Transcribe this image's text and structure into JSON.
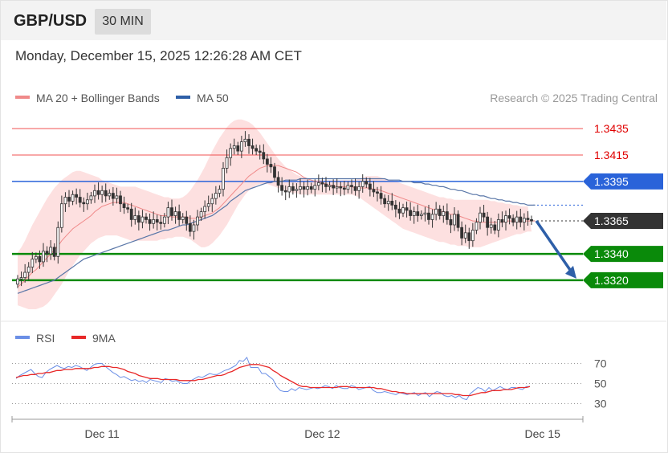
{
  "header": {
    "symbol": "GBP/USD",
    "interval": "30 MIN",
    "datetime": "Monday, December 15, 2025 12:26:28 AM CET",
    "copyright": "Research © 2025 Trading Central"
  },
  "legend": {
    "ma20": "MA 20 + Bollinger Bands",
    "ma50": "MA 50",
    "rsi": "RSI",
    "rsi9ma": "9MA"
  },
  "colors": {
    "candle": "#333333",
    "ma20": "#f08a8a",
    "bollinger_fill": "#fde0e0",
    "ma50": "#5a77a8",
    "resistance": "#f05050",
    "resistance_text": "#e00000",
    "ma_level": "#2a63d9",
    "support": "#0a8a0a",
    "current": "#333333",
    "arrow": "#2e5fa8",
    "rsi": "#6b8fe6",
    "rsi_ma": "#e82828"
  },
  "chart_data": [
    {
      "type": "candlestick",
      "ylim": [
        1.3298,
        1.3454
      ],
      "x_ticks": [
        "Dec 11",
        "Dec 12",
        "Dec 15"
      ],
      "x_tick_index": [
        23,
        83,
        143
      ],
      "levels": [
        {
          "label": "1.3435",
          "value": 1.3435,
          "kind": "resistance"
        },
        {
          "label": "1.3415",
          "value": 1.3415,
          "kind": "resistance"
        },
        {
          "label": "1.3395",
          "value": 1.3395,
          "kind": "ma_level"
        },
        {
          "label": "1.3365",
          "value": 1.3365,
          "kind": "current"
        },
        {
          "label": "1.3340",
          "value": 1.334,
          "kind": "support"
        },
        {
          "label": "1.3320",
          "value": 1.332,
          "kind": "support"
        }
      ],
      "forecast": {
        "from": 1.3365,
        "to": 1.332
      },
      "close": [
        1.3321,
        1.3322,
        1.3326,
        1.333,
        1.3336,
        1.3338,
        1.3334,
        1.3342,
        1.334,
        1.3345,
        1.3338,
        1.336,
        1.3378,
        1.3383,
        1.338,
        1.3385,
        1.3383,
        1.3379,
        1.3378,
        1.3381,
        1.3384,
        1.3388,
        1.3385,
        1.3388,
        1.3384,
        1.3386,
        1.3382,
        1.3384,
        1.3378,
        1.3375,
        1.3374,
        1.3366,
        1.3369,
        1.3364,
        1.3368,
        1.3366,
        1.3363,
        1.3366,
        1.3364,
        1.3363,
        1.3368,
        1.3375,
        1.3369,
        1.3372,
        1.3366,
        1.3368,
        1.3363,
        1.3357,
        1.3362,
        1.3368,
        1.3372,
        1.3376,
        1.3378,
        1.3382,
        1.3386,
        1.3389,
        1.3405,
        1.3413,
        1.342,
        1.3422,
        1.3418,
        1.3425,
        1.3427,
        1.3422,
        1.342,
        1.3418,
        1.3417,
        1.3412,
        1.3408,
        1.3406,
        1.3398,
        1.3392,
        1.3388,
        1.3387,
        1.3391,
        1.3388,
        1.3389,
        1.3391,
        1.3389,
        1.3391,
        1.3389,
        1.3392,
        1.3394,
        1.3393,
        1.3391,
        1.3392,
        1.339,
        1.3391,
        1.339,
        1.3389,
        1.3392,
        1.3391,
        1.3388,
        1.3391,
        1.3395,
        1.3393,
        1.3389,
        1.3387,
        1.3386,
        1.3382,
        1.3378,
        1.338,
        1.3377,
        1.3374,
        1.3371,
        1.3375,
        1.3373,
        1.3369,
        1.3372,
        1.3369,
        1.337,
        1.3371,
        1.3366,
        1.337,
        1.3374,
        1.3369,
        1.3372,
        1.3366,
        1.3362,
        1.337,
        1.336,
        1.3352,
        1.3356,
        1.335,
        1.3358,
        1.3364,
        1.3371,
        1.3368,
        1.336,
        1.3362,
        1.3358,
        1.3366,
        1.3364,
        1.3369,
        1.3367,
        1.3364,
        1.3368,
        1.3364,
        1.3367,
        1.3366,
        1.3365
      ],
      "ma20": [
        1.3315,
        1.3317,
        1.332,
        1.3323,
        1.3326,
        1.3328,
        1.3331,
        1.3334,
        1.3337,
        1.334,
        1.3343,
        1.3346,
        1.335,
        1.3353,
        1.3356,
        1.3359,
        1.3361,
        1.3363,
        1.3365,
        1.3367,
        1.3369,
        1.3372,
        1.3374,
        1.3376,
        1.3377,
        1.3378,
        1.3379,
        1.3379,
        1.3379,
        1.3379,
        1.3378,
        1.3377,
        1.3376,
        1.3375,
        1.3374,
        1.3373,
        1.3372,
        1.3371,
        1.337,
        1.3369,
        1.3369,
        1.3369,
        1.3368,
        1.3368,
        1.3368,
        1.3368,
        1.3368,
        1.3367,
        1.3367,
        1.3367,
        1.3368,
        1.3369,
        1.337,
        1.3371,
        1.3373,
        1.3375,
        1.3378,
        1.3381,
        1.3384,
        1.3387,
        1.339,
        1.3393,
        1.3396,
        1.3399,
        1.3401,
        1.3403,
        1.3405,
        1.3406,
        1.3407,
        1.3407,
        1.3407,
        1.3407,
        1.3406,
        1.3405,
        1.3404,
        1.3403,
        1.3402,
        1.34,
        1.3398,
        1.3397,
        1.3396,
        1.3395,
        1.3395,
        1.3394,
        1.3393,
        1.3392,
        1.3392,
        1.3391,
        1.3391,
        1.3391,
        1.3391,
        1.3391,
        1.339,
        1.339,
        1.339,
        1.339,
        1.339,
        1.3389,
        1.3389,
        1.3388,
        1.3387,
        1.3386,
        1.3385,
        1.3384,
        1.3383,
        1.3382,
        1.3381,
        1.338,
        1.3379,
        1.3378,
        1.3377,
        1.3376,
        1.3375,
        1.3374,
        1.3373,
        1.3372,
        1.3372,
        1.3371,
        1.337,
        1.337,
        1.3369,
        1.3368,
        1.3367,
        1.3366,
        1.3365,
        1.3365,
        1.3364,
        1.3364,
        1.3364,
        1.3364,
        1.3364,
        1.3364,
        1.3364,
        1.3365,
        1.3365,
        1.3365,
        1.3365,
        1.3365,
        1.3365,
        1.3365,
        1.3365,
        1.3365
      ],
      "bb_upper": [
        1.3341,
        1.3345,
        1.335,
        1.3356,
        1.3362,
        1.3367,
        1.3372,
        1.3377,
        1.3382,
        1.3386,
        1.339,
        1.3393,
        1.3396,
        1.3398,
        1.34,
        1.3402,
        1.3403,
        1.3403,
        1.3402,
        1.3401,
        1.34,
        1.3399,
        1.3398,
        1.3396,
        1.3395,
        1.3394,
        1.3393,
        1.3392,
        1.3391,
        1.3391,
        1.3391,
        1.3391,
        1.3391,
        1.339,
        1.3389,
        1.3388,
        1.3387,
        1.3386,
        1.3385,
        1.3384,
        1.3383,
        1.3383,
        1.3382,
        1.3382,
        1.3382,
        1.3383,
        1.3385,
        1.3388,
        1.3392,
        1.3396,
        1.3401,
        1.3406,
        1.3412,
        1.3418,
        1.3423,
        1.3428,
        1.3432,
        1.3436,
        1.3439,
        1.3441,
        1.3442,
        1.3442,
        1.3441,
        1.344,
        1.3438,
        1.3435,
        1.3432,
        1.3428,
        1.3424,
        1.342,
        1.3416,
        1.3412,
        1.3409,
        1.3406,
        1.3404,
        1.3402,
        1.34,
        1.3399,
        1.3398,
        1.3397,
        1.3396,
        1.3396,
        1.3396,
        1.3396,
        1.3396,
        1.3396,
        1.3396,
        1.3396,
        1.3396,
        1.3396,
        1.3396,
        1.3396,
        1.3396,
        1.3397,
        1.3398,
        1.3399,
        1.3399,
        1.3399,
        1.3399,
        1.3398,
        1.3397,
        1.3396,
        1.3396,
        1.3395,
        1.3394,
        1.3393,
        1.3392,
        1.3391,
        1.339,
        1.3389,
        1.3388,
        1.3387,
        1.3386,
        1.3385,
        1.3384,
        1.3383,
        1.3383,
        1.3382,
        1.3382,
        1.3381,
        1.3381,
        1.3381,
        1.3381,
        1.3381,
        1.3381,
        1.3381,
        1.3381,
        1.3381,
        1.3381,
        1.338,
        1.338,
        1.3379,
        1.3379,
        1.3378,
        1.3378,
        1.3377,
        1.3377,
        1.3376,
        1.3376,
        1.3376
      ],
      "bb_lower": [
        1.3301,
        1.33,
        1.3299,
        1.3298,
        1.3298,
        1.3298,
        1.3299,
        1.33,
        1.3302,
        1.3305,
        1.3309,
        1.3313,
        1.3317,
        1.3322,
        1.3327,
        1.3331,
        1.3335,
        1.3339,
        1.3342,
        1.3345,
        1.3348,
        1.335,
        1.3352,
        1.3353,
        1.3354,
        1.3354,
        1.3354,
        1.3354,
        1.3353,
        1.3352,
        1.3351,
        1.335,
        1.335,
        1.335,
        1.335,
        1.335,
        1.335,
        1.335,
        1.335,
        1.3351,
        1.3351,
        1.3352,
        1.3352,
        1.3353,
        1.3353,
        1.3353,
        1.3352,
        1.3351,
        1.3349,
        1.3347,
        1.3345,
        1.3345,
        1.3346,
        1.3348,
        1.3351,
        1.3354,
        1.3358,
        1.3362,
        1.3367,
        1.3372,
        1.3377,
        1.3381,
        1.3385,
        1.3388,
        1.339,
        1.3392,
        1.3393,
        1.3393,
        1.3393,
        1.3392,
        1.3391,
        1.339,
        1.3389,
        1.3388,
        1.3387,
        1.3386,
        1.3386,
        1.3385,
        1.3385,
        1.3385,
        1.3385,
        1.3385,
        1.3385,
        1.3385,
        1.3385,
        1.3385,
        1.3385,
        1.3385,
        1.3385,
        1.3385,
        1.3385,
        1.3385,
        1.3384,
        1.3383,
        1.3381,
        1.3379,
        1.3377,
        1.3375,
        1.3373,
        1.3371,
        1.3369,
        1.3367,
        1.3365,
        1.3363,
        1.3361,
        1.3359,
        1.3358,
        1.3357,
        1.3356,
        1.3355,
        1.3354,
        1.3353,
        1.3352,
        1.3351,
        1.335,
        1.3349,
        1.3349,
        1.3348,
        1.3347,
        1.3347,
        1.3346,
        1.3346,
        1.3346,
        1.3345,
        1.3345,
        1.3345,
        1.3345,
        1.3346,
        1.3347,
        1.3348,
        1.3349,
        1.335,
        1.3351,
        1.3352,
        1.3353,
        1.3354,
        1.3355,
        1.3355,
        1.3356,
        1.3357,
        1.3357,
        1.3358,
        1.3358,
        1.3358
      ],
      "ma50": [
        1.331,
        1.3311,
        1.3312,
        1.3313,
        1.3314,
        1.3315,
        1.3316,
        1.3317,
        1.3318,
        1.3319,
        1.332,
        1.3322,
        1.3324,
        1.3326,
        1.3328,
        1.333,
        1.3332,
        1.3334,
        1.3336,
        1.3337,
        1.3338,
        1.3339,
        1.334,
        1.3341,
        1.3342,
        1.3343,
        1.3344,
        1.3345,
        1.3346,
        1.3347,
        1.3348,
        1.3349,
        1.335,
        1.3351,
        1.3352,
        1.3353,
        1.3354,
        1.3355,
        1.3356,
        1.3357,
        1.3358,
        1.3358,
        1.3359,
        1.336,
        1.3361,
        1.3362,
        1.3362,
        1.3363,
        1.3364,
        1.3365,
        1.3366,
        1.3367,
        1.3368,
        1.3369,
        1.3371,
        1.3373,
        1.3375,
        1.3377,
        1.338,
        1.3382,
        1.3384,
        1.3386,
        1.3388,
        1.3389,
        1.339,
        1.3391,
        1.3392,
        1.3393,
        1.3394,
        1.3394,
        1.3395,
        1.3395,
        1.3395,
        1.3396,
        1.3396,
        1.3396,
        1.3396,
        1.3397,
        1.3397,
        1.3397,
        1.3397,
        1.3397,
        1.3397,
        1.3397,
        1.3397,
        1.3397,
        1.3397,
        1.3397,
        1.3397,
        1.3397,
        1.3397,
        1.3397,
        1.3397,
        1.3397,
        1.3397,
        1.3397,
        1.3397,
        1.3397,
        1.3397,
        1.3397,
        1.3397,
        1.3396,
        1.3396,
        1.3396,
        1.3396,
        1.3395,
        1.3395,
        1.3395,
        1.3394,
        1.3394,
        1.3394,
        1.3393,
        1.3393,
        1.3392,
        1.3392,
        1.3391,
        1.3391,
        1.339,
        1.3389,
        1.3389,
        1.3388,
        1.3388,
        1.3387,
        1.3386,
        1.3385,
        1.3385,
        1.3384,
        1.3384,
        1.3383,
        1.3382,
        1.3382,
        1.3381,
        1.3381,
        1.338,
        1.338,
        1.3379,
        1.3379,
        1.3378,
        1.3378,
        1.3377,
        1.3377,
        1.3377
      ]
    },
    {
      "type": "line",
      "ylim": [
        20,
        80
      ],
      "y_ticks": [
        "70",
        "50",
        "30"
      ],
      "y_tick_values": [
        70,
        50,
        30
      ],
      "series": [
        {
          "name": "RSI",
          "values": [
            55,
            58,
            60,
            62,
            64,
            60,
            57,
            56,
            61,
            64,
            66,
            68,
            66,
            65,
            67,
            66,
            68,
            67,
            65,
            63,
            66,
            69,
            70,
            70,
            67,
            64,
            61,
            59,
            56,
            57,
            55,
            53,
            54,
            52,
            53,
            51,
            54,
            53,
            52,
            51,
            55,
            54,
            52,
            53,
            51,
            50,
            50,
            53,
            55,
            57,
            56,
            58,
            60,
            59,
            59,
            61,
            63,
            64,
            66,
            68,
            73,
            72,
            76,
            66,
            66,
            66,
            60,
            60,
            57,
            54,
            47,
            43,
            42,
            42,
            45,
            43,
            46,
            45,
            44,
            45,
            46,
            45,
            46,
            48,
            47,
            45,
            48,
            46,
            45,
            45,
            48,
            47,
            44,
            45,
            46,
            47,
            43,
            41,
            41,
            42,
            41,
            40,
            39,
            41,
            40,
            39,
            40,
            41,
            38,
            40,
            41,
            37,
            40,
            42,
            41,
            38,
            37,
            38,
            36,
            38,
            35,
            34,
            40,
            43,
            46,
            45,
            42,
            46,
            43,
            45,
            47,
            45,
            44,
            46,
            46,
            45,
            44,
            47,
            47
          ]
        },
        {
          "name": "9MA",
          "values": [
            56,
            57,
            58,
            58,
            59,
            59,
            60,
            60,
            61,
            61,
            62,
            63,
            63,
            64,
            64,
            64,
            65,
            65,
            65,
            65,
            65,
            66,
            66,
            67,
            67,
            67,
            66,
            66,
            65,
            64,
            62,
            61,
            60,
            58,
            57,
            56,
            55,
            55,
            55,
            54,
            54,
            54,
            54,
            54,
            53,
            53,
            53,
            53,
            53,
            54,
            54,
            55,
            56,
            57,
            58,
            58,
            59,
            61,
            62,
            64,
            66,
            67,
            68,
            69,
            69,
            69,
            68,
            67,
            66,
            63,
            61,
            58,
            56,
            54,
            52,
            50,
            48,
            47,
            47,
            46,
            46,
            46,
            46,
            46,
            46,
            46,
            46,
            47,
            47,
            47,
            46,
            46,
            46,
            46,
            46,
            46,
            46,
            45,
            45,
            44,
            43,
            42,
            42,
            41,
            41,
            40,
            40,
            40,
            40,
            40,
            40,
            40,
            40,
            40,
            40,
            40,
            40,
            40,
            39,
            39,
            38,
            38,
            38,
            39,
            40,
            41,
            41,
            42,
            43,
            43,
            43,
            44,
            44,
            44,
            45,
            46,
            46,
            46,
            47
          ]
        }
      ]
    }
  ]
}
